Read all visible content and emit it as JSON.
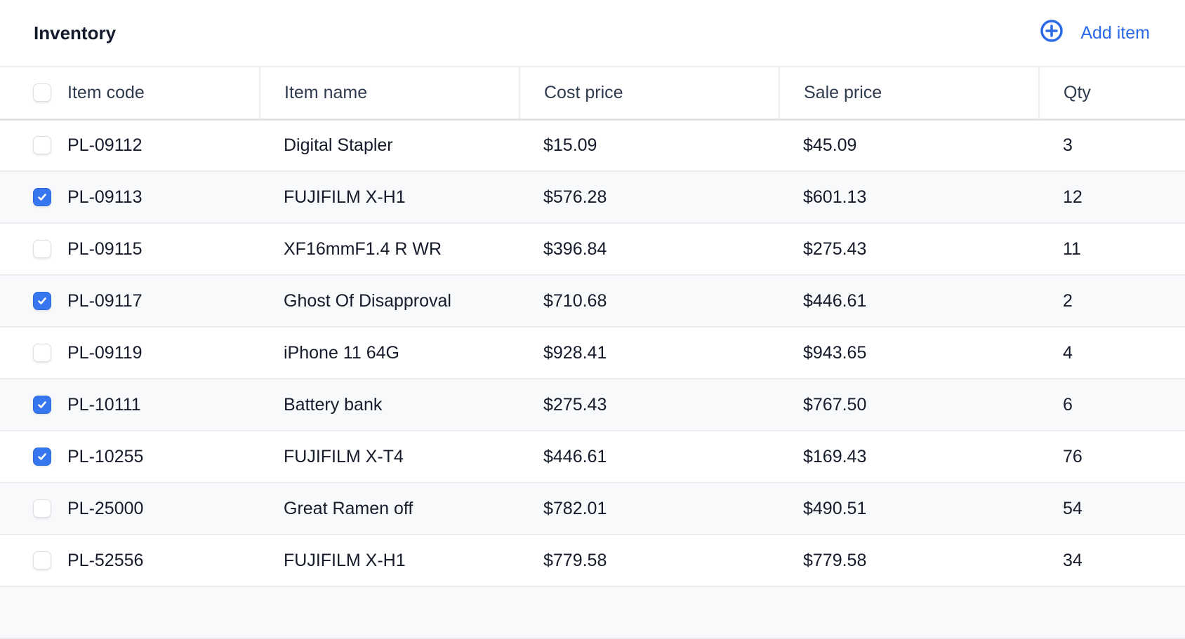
{
  "header": {
    "title": "Inventory",
    "add_label": "Add item",
    "add_icon": "plus-circle-icon"
  },
  "colors": {
    "accent": "#2b6ae6",
    "checked": "#3676ee",
    "stripe": "#f8f9fb"
  },
  "columns": [
    "Item code",
    "Item name",
    "Cost price",
    "Sale price",
    "Qty"
  ],
  "rows": [
    {
      "checked": false,
      "code": "PL-09112",
      "name": "Digital Stapler",
      "cost": "$15.09",
      "sale": "$45.09",
      "qty": "3"
    },
    {
      "checked": true,
      "code": "PL-09113",
      "name": "FUJIFILM X-H1",
      "cost": "$576.28",
      "sale": "$601.13",
      "qty": "12"
    },
    {
      "checked": false,
      "code": "PL-09115",
      "name": "XF16mmF1.4 R WR",
      "cost": "$396.84",
      "sale": "$275.43",
      "qty": "11"
    },
    {
      "checked": true,
      "code": "PL-09117",
      "name": "Ghost Of Disapproval",
      "cost": "$710.68",
      "sale": "$446.61",
      "qty": "2"
    },
    {
      "checked": false,
      "code": "PL-09119",
      "name": "iPhone 11 64G",
      "cost": "$928.41",
      "sale": "$943.65",
      "qty": "4"
    },
    {
      "checked": true,
      "code": "PL-10111",
      "name": "Battery bank",
      "cost": "$275.43",
      "sale": "$767.50",
      "qty": "6"
    },
    {
      "checked": true,
      "code": "PL-10255",
      "name": "FUJIFILM X-T4",
      "cost": "$446.61",
      "sale": "$169.43",
      "qty": "76"
    },
    {
      "checked": false,
      "code": "PL-25000",
      "name": "Great Ramen off",
      "cost": "$782.01",
      "sale": "$490.51",
      "qty": "54"
    },
    {
      "checked": false,
      "code": "PL-52556",
      "name": "FUJIFILM X-H1",
      "cost": "$779.58",
      "sale": "$779.58",
      "qty": "34"
    }
  ]
}
